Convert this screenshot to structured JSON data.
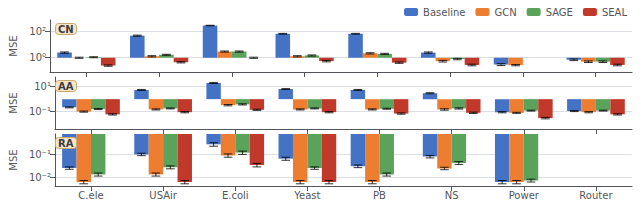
{
  "chart_data": [
    {
      "type": "bar",
      "title": "CN",
      "ylabel": "MSE",
      "categories": [
        "C.ele",
        "USAir",
        "E.coli",
        "Yeast",
        "PB",
        "NS",
        "Power",
        "Router"
      ],
      "series": [
        {
          "name": "Baseline",
          "color": "#4472c4",
          "values": [
            2.5,
            50.0,
            300.0,
            70.0,
            70.0,
            2.5,
            0.3,
            0.7
          ],
          "errors": [
            0.3,
            5.0,
            15.0,
            5.0,
            5.0,
            0.3,
            0.05,
            0.1
          ]
        },
        {
          "name": "GCN",
          "color": "#ed7d31",
          "values": [
            1.0,
            1.3,
            3.0,
            1.3,
            2.2,
            0.55,
            0.27,
            0.5
          ],
          "errors": [
            0.1,
            0.15,
            0.3,
            0.15,
            0.25,
            0.08,
            0.03,
            0.07
          ]
        },
        {
          "name": "SAGE",
          "color": "#5ba25b",
          "values": [
            1.1,
            1.7,
            3.0,
            1.5,
            2.0,
            0.8,
            null,
            0.5
          ],
          "errors": [
            0.1,
            0.15,
            0.3,
            0.15,
            0.2,
            0.1,
            null,
            0.07
          ]
        },
        {
          "name": "SEAL",
          "color": "#c0392b",
          "values": [
            0.25,
            0.45,
            1.0,
            0.55,
            0.42,
            0.28,
            null,
            0.28
          ],
          "errors": [
            0.03,
            0.05,
            0.1,
            0.07,
            0.05,
            0.04,
            null,
            0.04
          ]
        }
      ],
      "log": "y",
      "ylim": [
        0.08,
        800
      ],
      "yticks": [
        {
          "value": 1,
          "label": "10⁰"
        },
        {
          "value": 100,
          "label": "10²"
        }
      ],
      "grid": true,
      "legend": "upper right",
      "tick_labels": "y"
    },
    {
      "type": "bar",
      "title": "AA",
      "ylabel": "MSE",
      "categories": [
        "C.ele",
        "USAir",
        "E.coli",
        "Yeast",
        "PB",
        "NS",
        "Power",
        "Router"
      ],
      "series": [
        {
          "name": "Baseline",
          "color": "#4472c4",
          "values": [
            0.22,
            5.5,
            20.0,
            6.5,
            5.5,
            3.0,
            0.09,
            0.11
          ],
          "errors": [
            0.02,
            0.5,
            2.0,
            0.5,
            0.5,
            0.3,
            0.01,
            0.01
          ]
        },
        {
          "name": "GCN",
          "color": "#ed7d31",
          "values": [
            0.1,
            0.15,
            0.33,
            0.15,
            0.15,
            0.15,
            0.08,
            0.09
          ],
          "errors": [
            0.01,
            0.015,
            0.04,
            0.015,
            0.015,
            0.02,
            0.008,
            0.01
          ]
        },
        {
          "name": "SAGE",
          "color": "#5ba25b",
          "values": [
            0.16,
            0.18,
            0.38,
            0.18,
            0.17,
            0.18,
            0.12,
            0.12
          ],
          "errors": [
            0.015,
            0.015,
            0.04,
            0.015,
            0.015,
            0.02,
            0.01,
            0.01
          ]
        },
        {
          "name": "SEAL",
          "color": "#c0392b",
          "values": [
            0.06,
            0.09,
            0.14,
            0.09,
            0.07,
            0.08,
            0.03,
            0.06
          ],
          "errors": [
            0.007,
            0.01,
            0.015,
            0.01,
            0.008,
            0.01,
            0.004,
            0.007
          ]
        }
      ],
      "log": "y",
      "ylim": [
        0.004,
        60
      ],
      "yticks": [
        {
          "value": 0.1,
          "label": "10⁻¹"
        },
        {
          "value": 10,
          "label": "10¹"
        }
      ],
      "grid": true,
      "tick_labels": "y"
    },
    {
      "type": "bar",
      "title": "RA",
      "ylabel": "MSE",
      "categories": [
        "C.ele",
        "USAir",
        "E.coli",
        "Yeast",
        "PB",
        "NS",
        "Power",
        "Router"
      ],
      "series": [
        {
          "name": "Baseline",
          "color": "#4472c4",
          "values": [
            0.025,
            0.1,
            0.28,
            0.065,
            0.03,
            0.08,
            0.006,
            null
          ],
          "errors": [
            0.003,
            0.012,
            0.05,
            0.01,
            0.004,
            0.01,
            0.001,
            null
          ]
        },
        {
          "name": "GCN",
          "color": "#ed7d31",
          "values": [
            0.006,
            0.013,
            0.09,
            0.006,
            0.006,
            0.024,
            0.006,
            null
          ],
          "errors": [
            0.001,
            0.002,
            0.015,
            0.001,
            0.001,
            0.003,
            0.001,
            null
          ]
        },
        {
          "name": "SAGE",
          "color": "#5ba25b",
          "values": [
            0.013,
            0.027,
            0.12,
            0.025,
            0.013,
            0.042,
            0.007,
            null
          ],
          "errors": [
            0.002,
            0.004,
            0.02,
            0.003,
            0.002,
            0.006,
            0.001,
            null
          ]
        },
        {
          "name": "SEAL",
          "color": "#c0392b",
          "values": [
            null,
            0.006,
            0.034,
            0.006,
            null,
            null,
            null,
            null
          ],
          "errors": [
            null,
            0.001,
            0.006,
            0.001,
            null,
            null,
            null,
            null
          ]
        }
      ],
      "log": "y",
      "ylim": [
        0.004,
        0.8
      ],
      "yticks": [
        {
          "value": 0.01,
          "label": "10⁻²"
        },
        {
          "value": 0.1,
          "label": "10⁻¹"
        }
      ],
      "grid": true
    }
  ]
}
